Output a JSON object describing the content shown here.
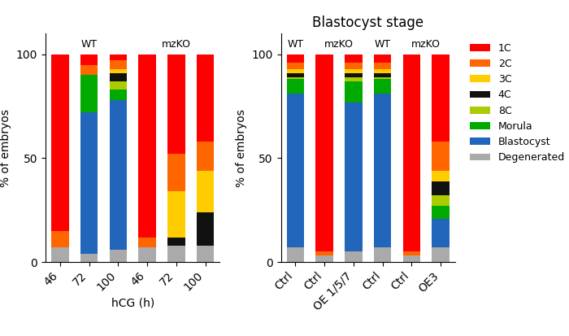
{
  "chart_data": [
    {
      "type": "bar",
      "stacked": true,
      "categories": [
        "46",
        "72",
        "100",
        "46",
        "72",
        "100"
      ],
      "groups": [
        "WT",
        "WT",
        "WT",
        "mzKO",
        "mzKO",
        "mzKO"
      ],
      "xlabel": "hCG (h)",
      "ylabel": "% of embryos",
      "ylim": [
        0,
        110
      ],
      "yticks": [
        0,
        50,
        100
      ],
      "series": [
        {
          "name": "Degenerated",
          "color": "#AAAAAA",
          "values": [
            7,
            4,
            6,
            7,
            8,
            8
          ]
        },
        {
          "name": "Blastocyst",
          "color": "#2266BB",
          "values": [
            0,
            68,
            72,
            0,
            0,
            0
          ]
        },
        {
          "name": "Morula",
          "color": "#00AA00",
          "values": [
            0,
            18,
            5,
            0,
            0,
            0
          ]
        },
        {
          "name": "8C",
          "color": "#AACC00",
          "values": [
            0,
            0,
            4,
            0,
            0,
            0
          ]
        },
        {
          "name": "4C",
          "color": "#111111",
          "values": [
            0,
            0,
            4,
            0,
            4,
            16
          ]
        },
        {
          "name": "3C",
          "color": "#FFCC00",
          "values": [
            0,
            0,
            2,
            0,
            22,
            20
          ]
        },
        {
          "name": "2C",
          "color": "#FF6600",
          "values": [
            8,
            5,
            4,
            5,
            18,
            14
          ]
        },
        {
          "name": "1C",
          "color": "#FF0000",
          "values": [
            85,
            5,
            3,
            88,
            48,
            42
          ]
        }
      ]
    },
    {
      "type": "bar",
      "stacked": true,
      "title": "Blastocyst stage",
      "categories": [
        "Ctrl",
        "Ctrl",
        "OE 1/5/7",
        "Ctrl",
        "Ctrl",
        "OE3"
      ],
      "groups": [
        "WT",
        "mzKO",
        "mzKO",
        "WT",
        "mzKO",
        "mzKO"
      ],
      "ylabel": "% of embryos",
      "ylim": [
        0,
        110
      ],
      "yticks": [
        0,
        50,
        100
      ],
      "legend": "upper left",
      "series": [
        {
          "name": "Degenerated",
          "color": "#AAAAAA",
          "values": [
            7,
            3,
            5,
            7,
            3,
            7
          ]
        },
        {
          "name": "Blastocyst",
          "color": "#2266BB",
          "values": [
            74,
            0,
            72,
            74,
            0,
            14
          ]
        },
        {
          "name": "Morula",
          "color": "#00AA00",
          "values": [
            7,
            0,
            10,
            7,
            0,
            6
          ]
        },
        {
          "name": "8C",
          "color": "#AACC00",
          "values": [
            1,
            0,
            2,
            1,
            0,
            5
          ]
        },
        {
          "name": "4C",
          "color": "#111111",
          "values": [
            2,
            0,
            2,
            2,
            0,
            7
          ]
        },
        {
          "name": "3C",
          "color": "#FFCC00",
          "values": [
            2,
            0,
            2,
            2,
            0,
            5
          ]
        },
        {
          "name": "2C",
          "color": "#FF6600",
          "values": [
            3,
            2,
            3,
            3,
            2,
            14
          ]
        },
        {
          "name": "1C",
          "color": "#FF0000",
          "values": [
            4,
            95,
            4,
            4,
            95,
            42
          ]
        }
      ]
    }
  ]
}
